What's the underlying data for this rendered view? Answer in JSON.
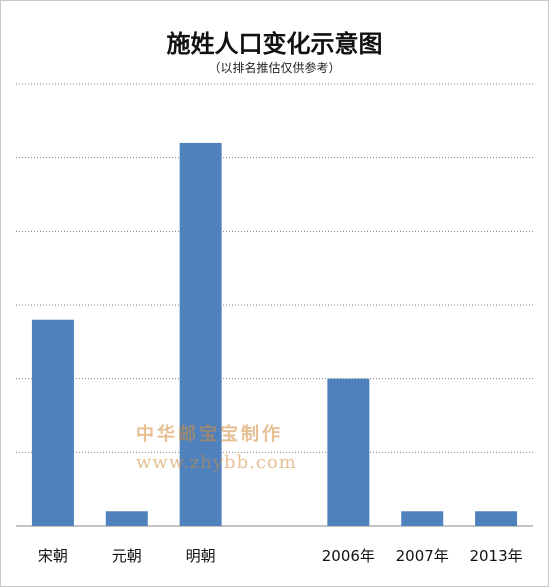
{
  "chart_data": {
    "type": "bar",
    "title": "施姓人口变化示意图",
    "subtitle": "（以排名推估仅供参考）",
    "categories": [
      "宋朝",
      "元朝",
      "明朝",
      "",
      "2006年",
      "2007年",
      "2013年"
    ],
    "values": [
      28,
      2,
      52,
      0,
      20,
      2,
      2
    ],
    "ylim": [
      0,
      60
    ],
    "grid": true,
    "gridlines": [
      10,
      20,
      30,
      40,
      50,
      60
    ],
    "bar_color": "#4f81bd",
    "grid_color": "#808080"
  },
  "watermark": {
    "text": "中华邮宝宝制作",
    "url": "www.zhybb.com",
    "color": "#d28c3c"
  }
}
